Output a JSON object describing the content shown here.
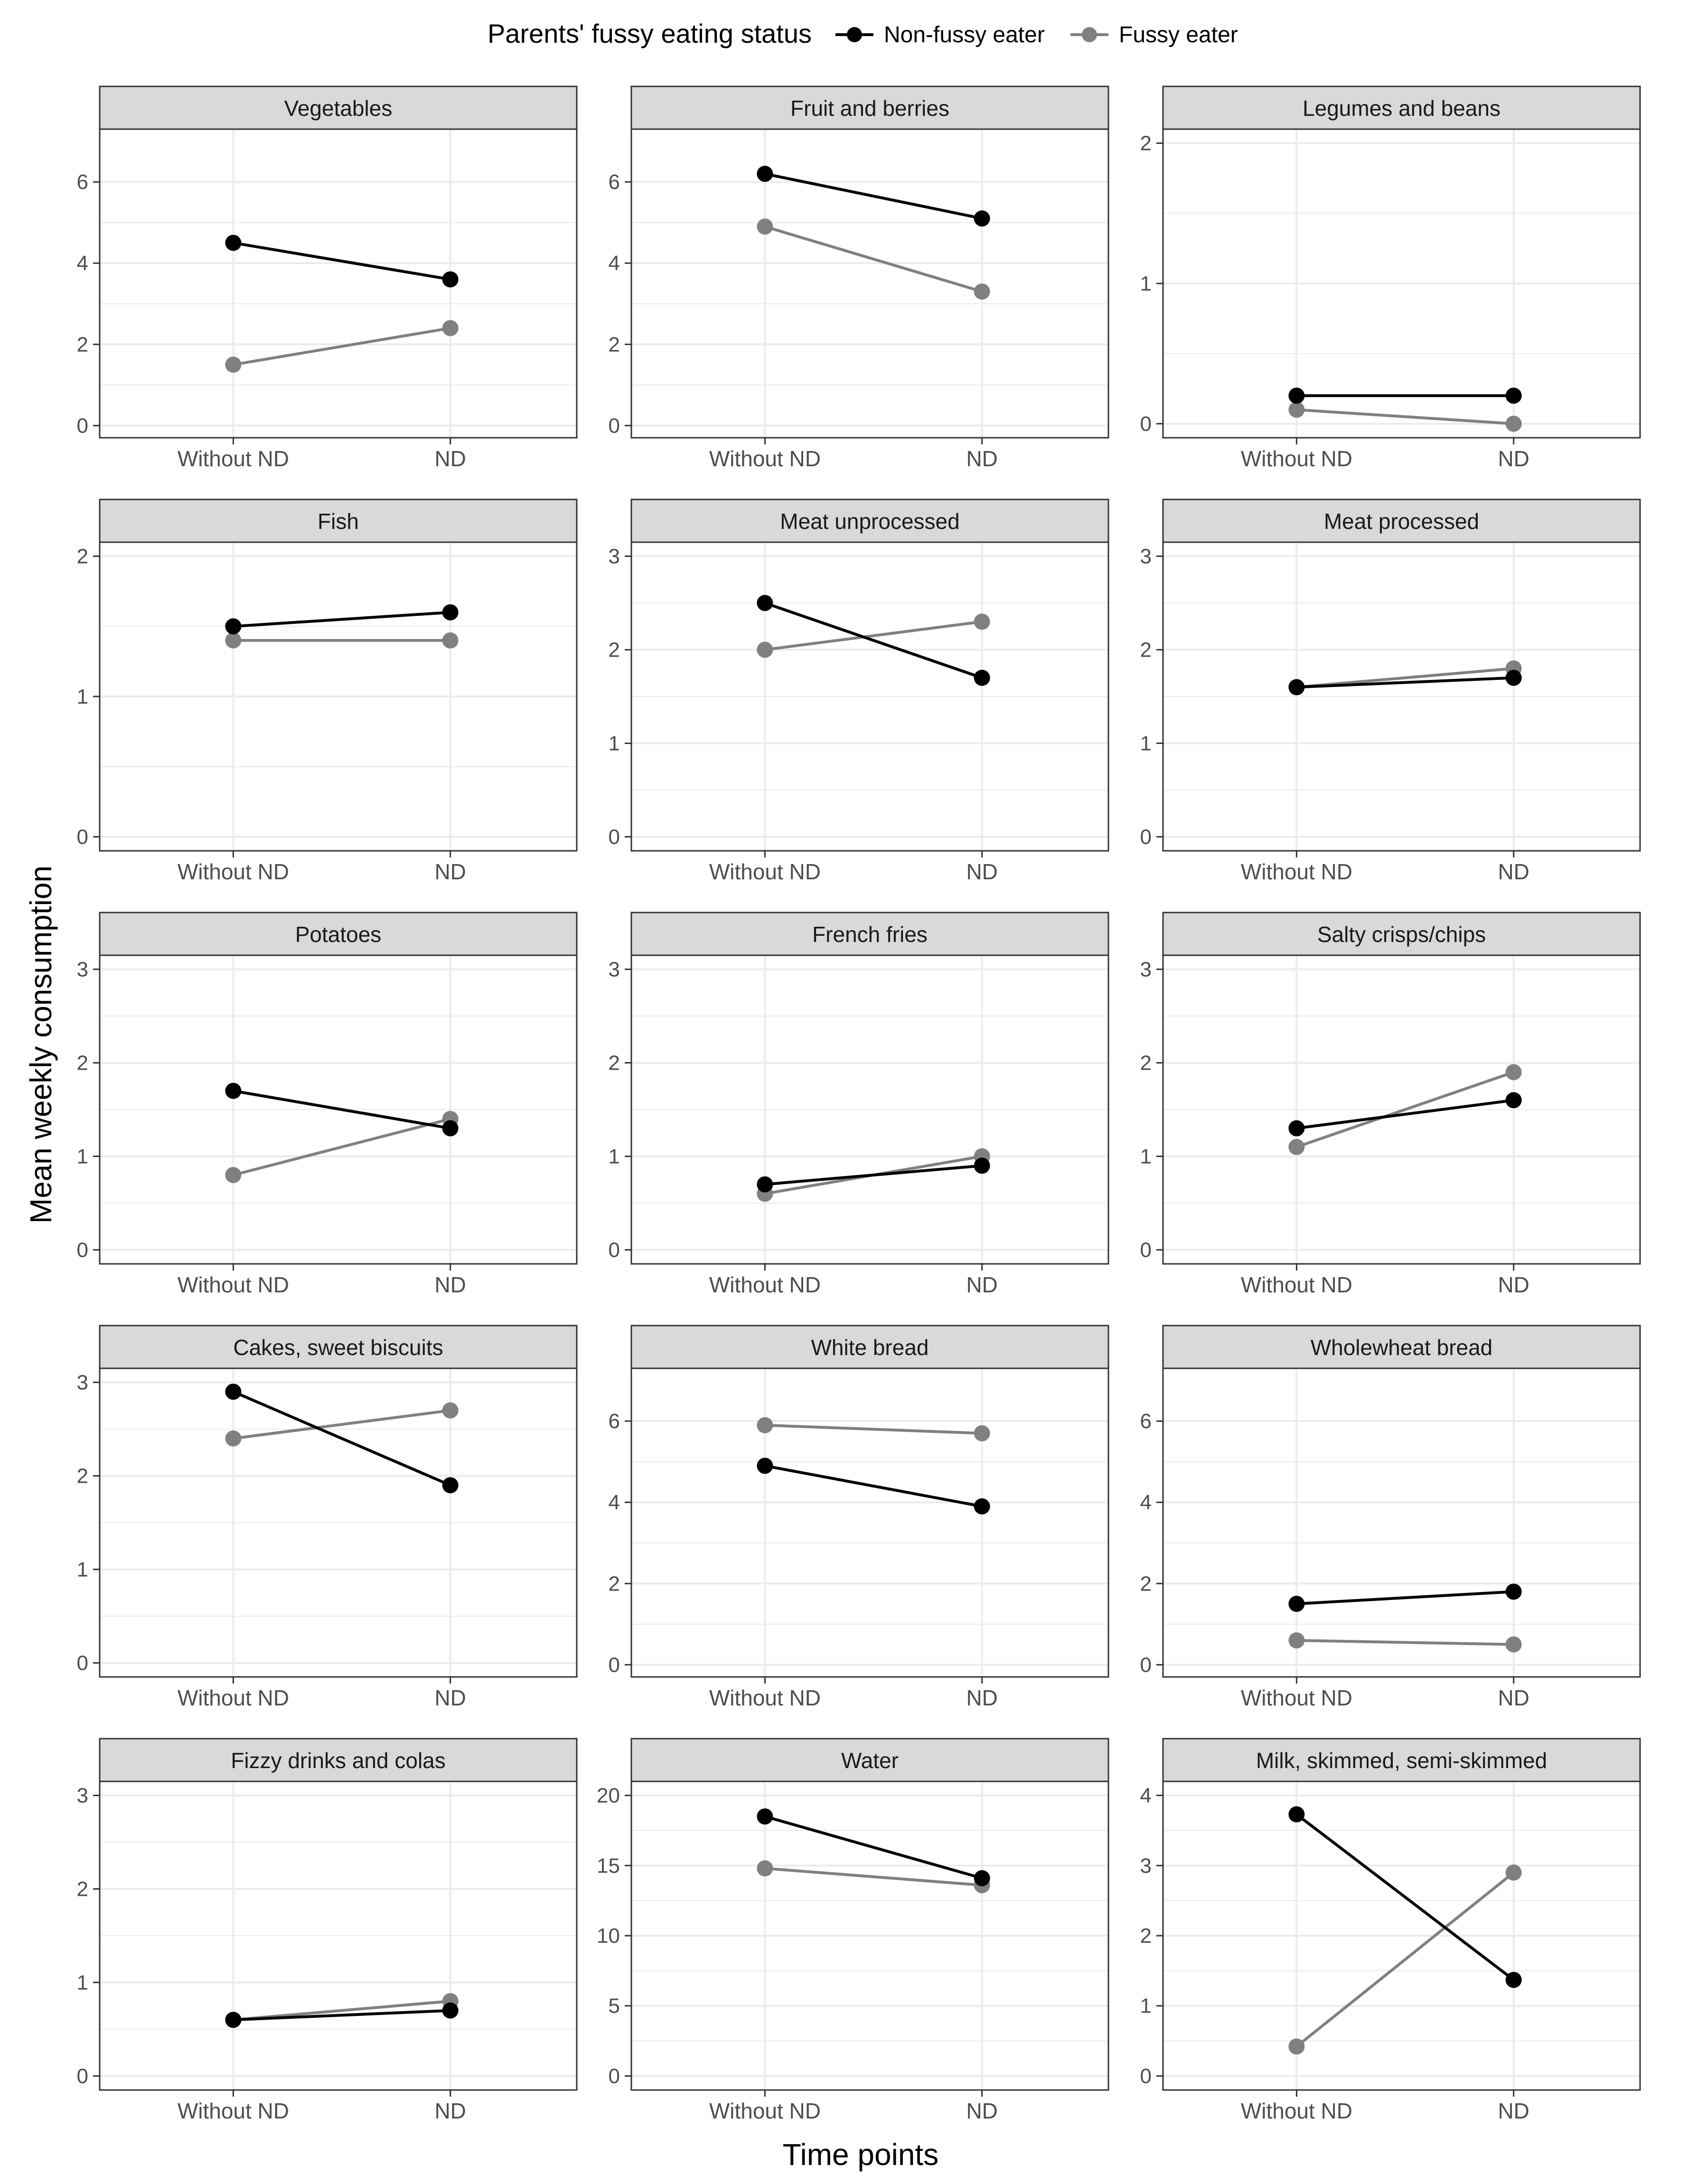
{
  "legend": {
    "title": "Parents' fussy eating status",
    "entries": [
      "Non-fussy eater",
      "Fussy eater"
    ]
  },
  "axis_titles": {
    "x": "Time points",
    "y": "Mean weekly consumption"
  },
  "colors": {
    "non_fussy": "#000000",
    "fussy": "#808080",
    "strip_fill": "#d9d9d9",
    "grid": "#ebebeb"
  },
  "chart_data": {
    "type": "line",
    "facet_layout": {
      "rows": 5,
      "cols": 3
    },
    "x": [
      "Without ND",
      "ND"
    ],
    "series_names": [
      "Non-fussy eater",
      "Fussy eater"
    ],
    "panels": [
      {
        "title": "Vegetables",
        "ylim": [
          -0.3,
          7.3
        ],
        "yticks": [
          0,
          2,
          4,
          6
        ],
        "tick_labels": [
          "0",
          "2",
          "4",
          "6"
        ],
        "values": {
          "non_fussy": [
            4.5,
            3.6
          ],
          "fussy": [
            1.5,
            2.4
          ]
        }
      },
      {
        "title": "Fruit and berries",
        "ylim": [
          -0.3,
          7.3
        ],
        "yticks": [
          0,
          2,
          4,
          6
        ],
        "tick_labels": [
          "0",
          "2",
          "4",
          "6"
        ],
        "values": {
          "non_fussy": [
            6.2,
            5.1
          ],
          "fussy": [
            4.9,
            3.3
          ]
        }
      },
      {
        "title": "Legumes and beans",
        "ylim": [
          -0.1,
          2.1
        ],
        "yticks": [
          0,
          1,
          2
        ],
        "tick_labels": [
          "0",
          "1",
          "2"
        ],
        "values": {
          "non_fussy": [
            0.2,
            0.2
          ],
          "fussy": [
            0.1,
            0.0
          ]
        }
      },
      {
        "title": "Fish",
        "ylim": [
          -0.1,
          2.1
        ],
        "yticks": [
          0,
          1,
          2
        ],
        "tick_labels": [
          "0",
          "1",
          "2"
        ],
        "values": {
          "non_fussy": [
            1.5,
            1.6
          ],
          "fussy": [
            1.4,
            1.4
          ]
        }
      },
      {
        "title": "Meat unprocessed",
        "ylim": [
          -0.15,
          3.15
        ],
        "yticks": [
          0,
          1,
          2,
          3
        ],
        "tick_labels": [
          "0",
          "1",
          "2",
          "3"
        ],
        "values": {
          "non_fussy": [
            2.5,
            1.7
          ],
          "fussy": [
            2.0,
            2.3
          ]
        }
      },
      {
        "title": "Meat processed",
        "ylim": [
          -0.15,
          3.15
        ],
        "yticks": [
          0,
          1,
          2,
          3
        ],
        "tick_labels": [
          "0",
          "1",
          "2",
          "3"
        ],
        "values": {
          "non_fussy": [
            1.6,
            1.7
          ],
          "fussy": [
            1.6,
            1.8
          ]
        }
      },
      {
        "title": "Potatoes",
        "ylim": [
          -0.15,
          3.15
        ],
        "yticks": [
          0,
          1,
          2,
          3
        ],
        "tick_labels": [
          "0",
          "1",
          "2",
          "3"
        ],
        "values": {
          "non_fussy": [
            1.7,
            1.3
          ],
          "fussy": [
            0.8,
            1.4
          ]
        }
      },
      {
        "title": "French fries",
        "ylim": [
          -0.15,
          3.15
        ],
        "yticks": [
          0,
          1,
          2,
          3
        ],
        "tick_labels": [
          "0",
          "1",
          "2",
          "3"
        ],
        "values": {
          "non_fussy": [
            0.7,
            0.9
          ],
          "fussy": [
            0.6,
            1.0
          ]
        }
      },
      {
        "title": "Salty crisps/chips",
        "ylim": [
          -0.15,
          3.15
        ],
        "yticks": [
          0,
          1,
          2,
          3
        ],
        "tick_labels": [
          "0",
          "1",
          "2",
          "3"
        ],
        "values": {
          "non_fussy": [
            1.3,
            1.6
          ],
          "fussy": [
            1.1,
            1.9
          ]
        }
      },
      {
        "title": "Cakes, sweet biscuits",
        "ylim": [
          -0.15,
          3.15
        ],
        "yticks": [
          0,
          1,
          2,
          3
        ],
        "tick_labels": [
          "0",
          "1",
          "2",
          "3"
        ],
        "values": {
          "non_fussy": [
            2.9,
            1.9
          ],
          "fussy": [
            2.4,
            2.7
          ]
        }
      },
      {
        "title": "White bread",
        "ylim": [
          -0.3,
          7.3
        ],
        "yticks": [
          0,
          2,
          4,
          6
        ],
        "tick_labels": [
          "0",
          "2",
          "4",
          "6"
        ],
        "values": {
          "non_fussy": [
            4.9,
            3.9
          ],
          "fussy": [
            5.9,
            5.7
          ]
        }
      },
      {
        "title": "Wholewheat bread",
        "ylim": [
          -0.3,
          7.3
        ],
        "yticks": [
          0,
          2,
          4,
          6
        ],
        "tick_labels": [
          "0",
          "2",
          "4",
          "6"
        ],
        "values": {
          "non_fussy": [
            1.5,
            1.8
          ],
          "fussy": [
            0.6,
            0.5
          ]
        }
      },
      {
        "title": "Fizzy drinks and colas",
        "ylim": [
          -0.15,
          3.15
        ],
        "yticks": [
          0,
          1,
          2,
          3
        ],
        "tick_labels": [
          "0",
          "1",
          "2",
          "3"
        ],
        "values": {
          "non_fussy": [
            0.6,
            0.7
          ],
          "fussy": [
            0.6,
            0.8
          ]
        }
      },
      {
        "title": "Water",
        "ylim": [
          -1.0,
          21.0
        ],
        "yticks": [
          0,
          5,
          10,
          15,
          20
        ],
        "tick_labels": [
          "0",
          "5",
          "10",
          "15",
          "20"
        ],
        "values": {
          "non_fussy": [
            18.5,
            14.1
          ],
          "fussy": [
            14.8,
            13.6
          ]
        }
      },
      {
        "title": "Milk, skimmed, semi-skimmed",
        "ylim": [
          -0.2,
          4.2
        ],
        "yticks": [
          0,
          1,
          2,
          3,
          4
        ],
        "tick_labels": [
          "0",
          "1",
          "2",
          "3",
          "4"
        ],
        "values": {
          "non_fussy": [
            3.73,
            1.37
          ],
          "fussy": [
            0.42,
            2.9
          ]
        }
      }
    ]
  }
}
